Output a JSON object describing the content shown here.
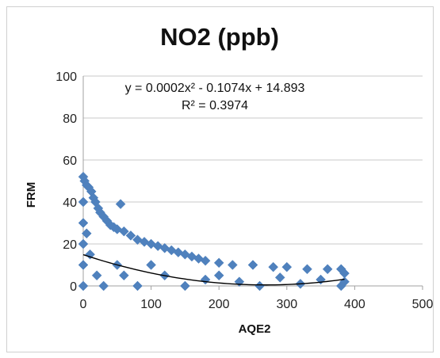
{
  "chart_data": {
    "type": "scatter",
    "title": "NO2 (ppb)",
    "xlabel": "AQE2",
    "ylabel": "FRM",
    "xlim": [
      0,
      500
    ],
    "ylim": [
      0,
      100
    ],
    "xticks": [
      "0",
      "100",
      "200",
      "300",
      "400",
      "500"
    ],
    "yticks": [
      "0",
      "20",
      "40",
      "60",
      "80",
      "100"
    ],
    "grid": "horizontal",
    "marker_color": "#4F81BD",
    "trendline_color": "#000000",
    "series": [
      {
        "marker": "diamond",
        "points": [
          [
            0,
            52
          ],
          [
            2,
            50
          ],
          [
            5,
            48
          ],
          [
            8,
            47
          ],
          [
            12,
            45
          ],
          [
            15,
            42
          ],
          [
            18,
            40
          ],
          [
            22,
            37
          ],
          [
            25,
            35
          ],
          [
            30,
            33
          ],
          [
            35,
            31
          ],
          [
            40,
            29
          ],
          [
            45,
            28
          ],
          [
            50,
            27
          ],
          [
            60,
            26
          ],
          [
            70,
            24
          ],
          [
            80,
            22
          ],
          [
            90,
            21
          ],
          [
            100,
            20
          ],
          [
            110,
            19
          ],
          [
            120,
            18
          ],
          [
            130,
            17
          ],
          [
            140,
            16
          ],
          [
            150,
            15
          ],
          [
            160,
            14
          ],
          [
            170,
            13
          ],
          [
            180,
            12
          ],
          [
            200,
            11
          ],
          [
            220,
            10
          ],
          [
            250,
            10
          ],
          [
            280,
            9
          ],
          [
            300,
            9
          ],
          [
            330,
            8
          ],
          [
            360,
            8
          ],
          [
            380,
            8
          ],
          [
            0,
            40
          ],
          [
            0,
            30
          ],
          [
            0,
            20
          ],
          [
            0,
            10
          ],
          [
            0,
            0
          ],
          [
            5,
            25
          ],
          [
            10,
            15
          ],
          [
            20,
            5
          ],
          [
            30,
            0
          ],
          [
            50,
            10
          ],
          [
            60,
            5
          ],
          [
            80,
            0
          ],
          [
            100,
            10
          ],
          [
            120,
            5
          ],
          [
            150,
            0
          ],
          [
            180,
            3
          ],
          [
            200,
            5
          ],
          [
            230,
            2
          ],
          [
            260,
            0
          ],
          [
            290,
            4
          ],
          [
            320,
            1
          ],
          [
            350,
            3
          ],
          [
            380,
            0
          ],
          [
            385,
            2
          ],
          [
            385,
            6
          ],
          [
            55,
            39
          ]
        ]
      }
    ],
    "trendline": {
      "type": "polynomial",
      "equation": "y = 0.0002x² - 0.1074x + 14.893",
      "r2": "R² = 0.3974",
      "coefficients": [
        0.0002,
        -0.1074,
        14.893
      ],
      "x_range": [
        0,
        385
      ]
    }
  }
}
